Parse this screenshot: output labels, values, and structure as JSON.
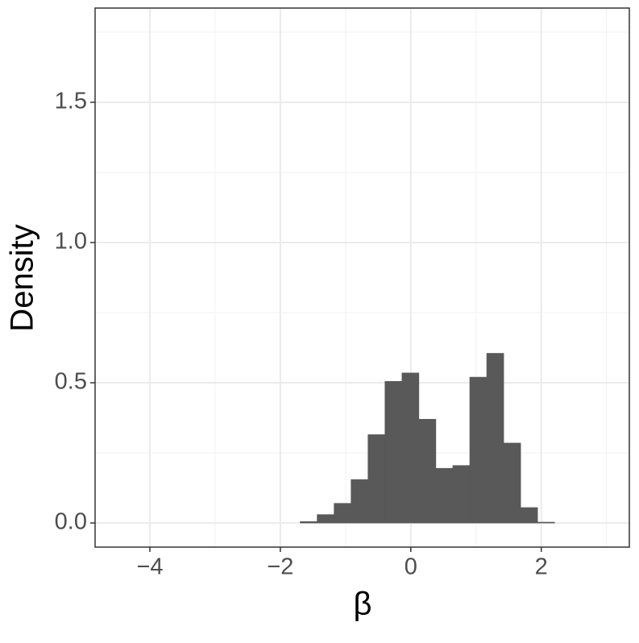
{
  "chart_data": {
    "type": "histogram",
    "x_label": "β",
    "y_label": "Density",
    "bins": [
      -4.296,
      -4.036,
      -3.776,
      -3.516,
      -3.256,
      -2.996,
      -2.736,
      -2.476,
      -2.216,
      -1.956,
      -1.696,
      -1.436,
      -1.176,
      -0.916,
      -0.656,
      -0.396,
      -0.136,
      0.124,
      0.384,
      0.644,
      0.904,
      1.164,
      1.424,
      1.684,
      1.944,
      2.204,
      2.464,
      2.724,
      2.984
    ],
    "values": [
      0,
      0,
      0,
      0,
      0,
      0,
      0,
      0,
      0,
      0,
      0.005,
      0.03,
      0.07,
      0.155,
      0.315,
      0.505,
      0.535,
      0.37,
      0.195,
      0.205,
      0.52,
      0.605,
      0.285,
      0.055,
      0.003,
      0,
      0,
      0
    ],
    "color": "#595959",
    "xlim": [
      -4.84,
      3.35
    ],
    "xticks": [
      {
        "value": -4,
        "label": "−4"
      },
      {
        "value": -2,
        "label": "−2"
      },
      0,
      2
    ],
    "ylim": [
      -0.086,
      1.836
    ],
    "yticks": [
      {
        "value": 0,
        "label": "0.0"
      },
      0.5,
      {
        "value": 1,
        "label": "1.0"
      },
      1.5
    ],
    "grid": true
  }
}
